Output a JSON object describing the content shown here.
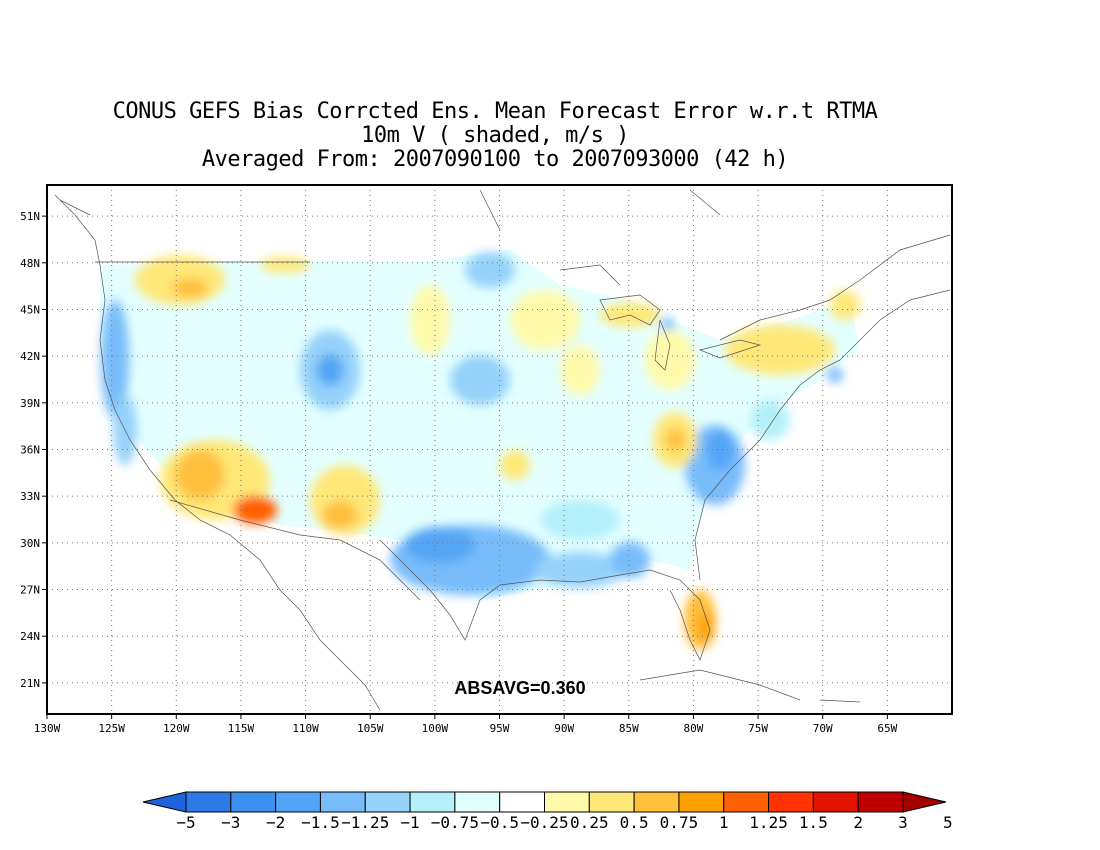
{
  "title": {
    "line1": "CONUS GEFS Bias Corrcted Ens. Mean Forecast Error w.r.t RTMA",
    "line2": "10m V ( shaded, m/s )",
    "line3": "Averaged From: 2007090100 to 2007093000 (42 h)"
  },
  "map": {
    "lon_range": [
      -130,
      -60
    ],
    "lat_range": [
      19,
      53
    ],
    "lon_ticks": [
      "130W",
      "125W",
      "120W",
      "115W",
      "110W",
      "105W",
      "100W",
      "95W",
      "90W",
      "85W",
      "80W",
      "75W",
      "70W",
      "65W"
    ],
    "lat_ticks": [
      "21N",
      "24N",
      "27N",
      "30N",
      "33N",
      "36N",
      "39N",
      "42N",
      "45N",
      "48N",
      "51N"
    ],
    "grid": true,
    "absavg": "ABSAVG=0.360"
  },
  "colorbar": {
    "labels": [
      "-5",
      "-3",
      "-2",
      "-1.5",
      "-1.25",
      "-1",
      "-0.75",
      "-0.5",
      "-0.25",
      "0.25",
      "0.5",
      "0.75",
      "1",
      "1.25",
      "1.5",
      "2",
      "3",
      "5"
    ],
    "colors": [
      "#1e64dc",
      "#2b7ae6",
      "#3c91f0",
      "#52a5f5",
      "#78bcfa",
      "#96d2fa",
      "#b4f0fa",
      "#e0ffff",
      "#ffffff",
      "#fffaaa",
      "#ffe878",
      "#ffc03c",
      "#ffa000",
      "#ff6000",
      "#ff3200",
      "#e11400",
      "#c00000",
      "#a50000"
    ]
  }
}
